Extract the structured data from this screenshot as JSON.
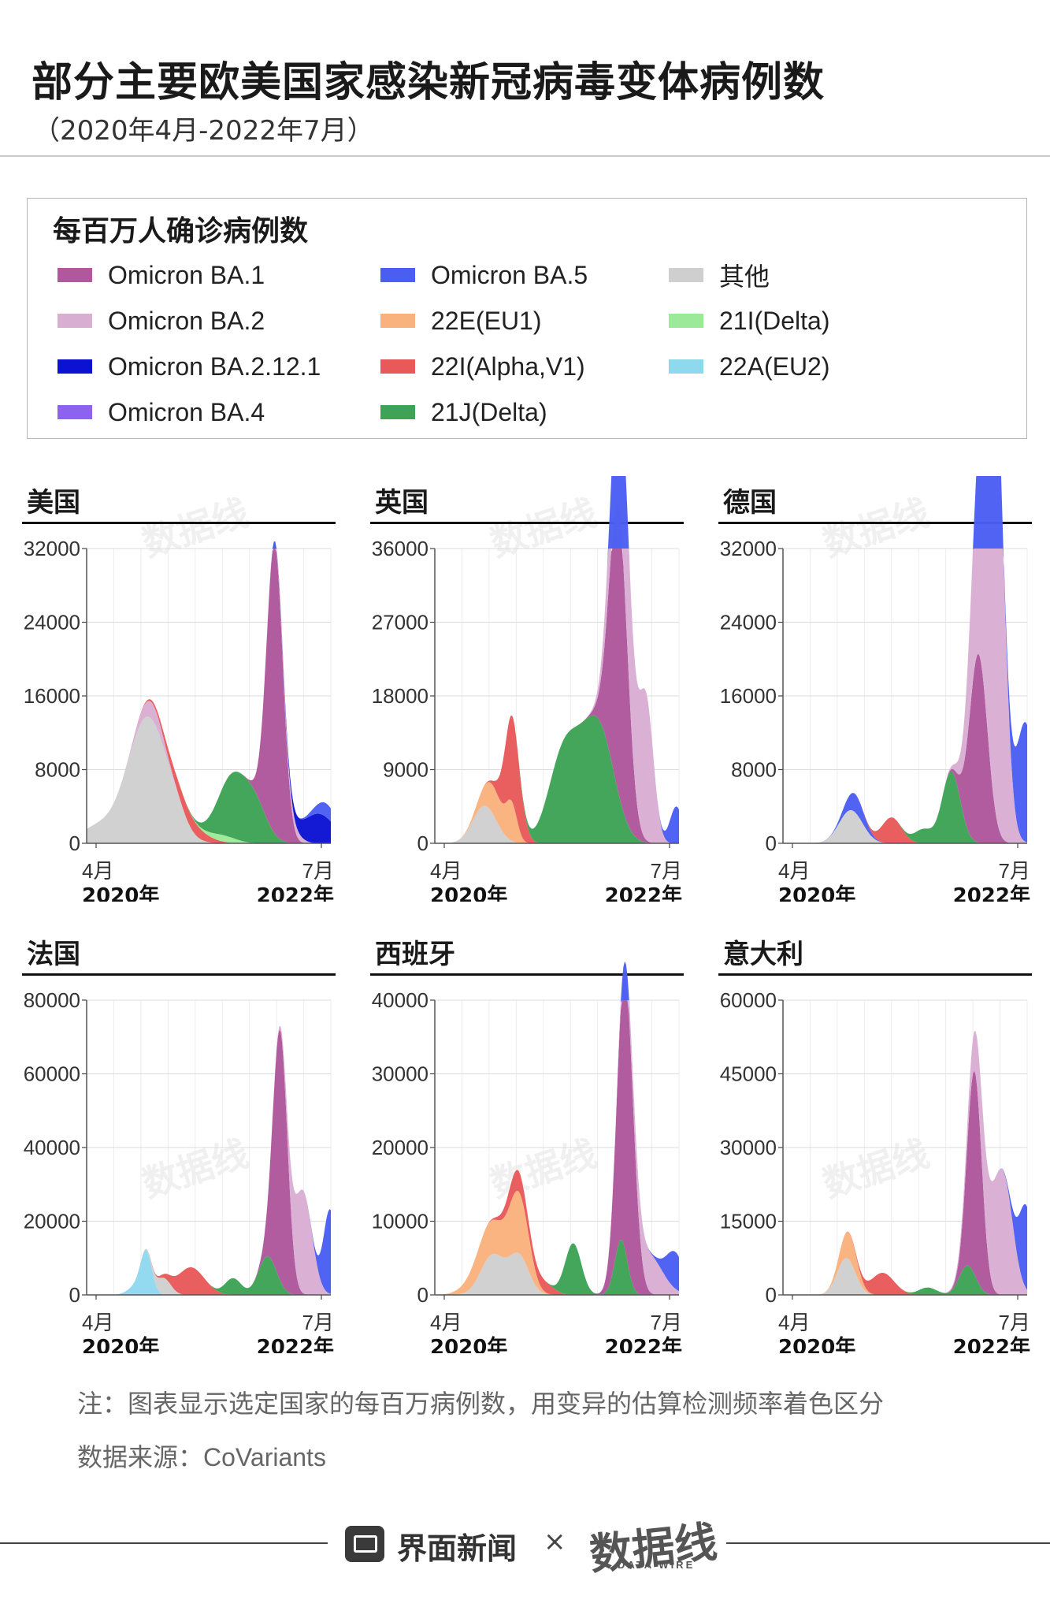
{
  "header": {
    "title": "部分主要欧美国家感染新冠病毒变体病例数",
    "subtitle": "（2020年4月-2022年7月）"
  },
  "legend": {
    "title": "每百万人确诊病例数",
    "items": [
      {
        "label": "Omicron BA.1",
        "color": "#b0579d"
      },
      {
        "label": "Omicron BA.2",
        "color": "#d9aed3"
      },
      {
        "label": "Omicron BA.2.12.1",
        "color": "#0c12d2"
      },
      {
        "label": "Omicron BA.4",
        "color": "#8c62ef"
      },
      {
        "label": "Omicron BA.5",
        "color": "#4a5ef2"
      },
      {
        "label": "22E(EU1)",
        "color": "#f9b27e"
      },
      {
        "label": "22I(Alpha,V1)",
        "color": "#e85a5a"
      },
      {
        "label": "21J(Delta)",
        "color": "#3ea356"
      },
      {
        "label": "其他",
        "color": "#cfcfcf"
      },
      {
        "label": "21I(Delta)",
        "color": "#9de99a"
      },
      {
        "label": "22A(EU2)",
        "color": "#8fd9ef"
      }
    ]
  },
  "watermark": "数据线",
  "chart_data": [
    {
      "type": "area",
      "country": "美国",
      "ylim": [
        0,
        32000
      ],
      "yticks": [
        0,
        8000,
        16000,
        24000,
        32000
      ],
      "xlim": [
        0,
        27
      ],
      "xticks": [
        "4月",
        "7月"
      ],
      "xyears": [
        "2020年",
        "2022年"
      ],
      "series": [
        {
          "name": "其他",
          "peaks": [
            [
              0.6,
              1.5,
              700
            ],
            [
              2.3,
              2.5,
              1200
            ],
            [
              6.8,
              2.2,
              13500
            ],
            [
              10.0,
              1.0,
              1000
            ]
          ]
        },
        {
          "name": "Omicron BA.2",
          "peaks": [
            [
              7.2,
              1.2,
              1800
            ]
          ]
        },
        {
          "name": "22I(Alpha,V1)",
          "peaks": [
            [
              11.0,
              2.0,
              1500
            ]
          ]
        },
        {
          "name": "21I(Delta)",
          "peaks": [
            [
              15.0,
              1.5,
              700
            ]
          ]
        },
        {
          "name": "21J(Delta)",
          "peaks": [
            [
              16.2,
              1.6,
              6600
            ],
            [
              18.7,
              1.3,
              3500
            ]
          ]
        },
        {
          "name": "Omicron BA.1",
          "peaks": [
            [
              20.8,
              0.9,
              31500
            ]
          ]
        },
        {
          "name": "Omicron BA.2",
          "peaks": [
            [
              22.6,
              1.0,
              1100
            ]
          ]
        },
        {
          "name": "Omicron BA.2.12.1",
          "peaks": [
            [
              25.6,
              1.8,
              3200
            ]
          ]
        },
        {
          "name": "Omicron BA.5",
          "peaks": [
            [
              26.6,
              1.2,
              1500
            ]
          ]
        }
      ]
    },
    {
      "type": "area",
      "country": "英国",
      "ylim": [
        0,
        36000
      ],
      "yticks": [
        0,
        9000,
        18000,
        27000,
        36000
      ],
      "xlim": [
        0,
        27
      ],
      "xticks": [
        "4月",
        "7月"
      ],
      "xyears": [
        "2020年",
        "2022年"
      ],
      "series": [
        {
          "name": "其他",
          "peaks": [
            [
              5.5,
              1.3,
              4600
            ]
          ]
        },
        {
          "name": "22E(EU1)",
          "peaks": [
            [
              6.5,
              1.2,
              3500
            ],
            [
              8.5,
              0.6,
              4000
            ]
          ]
        },
        {
          "name": "22I(Alpha,V1)",
          "peaks": [
            [
              8.6,
              0.9,
              10500
            ]
          ]
        },
        {
          "name": "21J(Delta)",
          "peaks": [
            [
              14.0,
              1.6,
              8000
            ],
            [
              16.5,
              2.0,
              8500
            ],
            [
              18.5,
              1.6,
              9000
            ]
          ]
        },
        {
          "name": "Omicron BA.1",
          "peaks": [
            [
              20.3,
              1.0,
              35000
            ]
          ]
        },
        {
          "name": "Omicron BA.2",
          "peaks": [
            [
              20.9,
              1.2,
              17000
            ],
            [
              23.4,
              0.8,
              16000
            ]
          ]
        },
        {
          "name": "Omicron BA.5",
          "peaks": [
            [
              26.7,
              0.7,
              4500
            ]
          ]
        }
      ]
    },
    {
      "type": "area",
      "country": "德国",
      "ylim": [
        0,
        32000
      ],
      "yticks": [
        0,
        8000,
        16000,
        24000,
        32000
      ],
      "xlim": [
        0,
        27
      ],
      "xticks": [
        "4月",
        "7月"
      ],
      "xyears": [
        "2020年",
        "2022年"
      ],
      "series": [
        {
          "name": "其他",
          "peaks": [
            [
              7.5,
              1.3,
              3600
            ]
          ]
        },
        {
          "name": "Omicron BA.5",
          "peaks": [
            [
              8.0,
              1.0,
              2000
            ]
          ]
        },
        {
          "name": "22I(Alpha,V1)",
          "peaks": [
            [
              12.0,
              1.1,
              2800
            ]
          ]
        },
        {
          "name": "21J(Delta)",
          "peaks": [
            [
              15.5,
              1.0,
              1500
            ],
            [
              18.6,
              1.0,
              7800
            ]
          ]
        },
        {
          "name": "Omicron BA.1",
          "peaks": [
            [
              21.6,
              1.0,
              20500
            ]
          ]
        },
        {
          "name": "Omicron BA.2",
          "peaks": [
            [
              22.5,
              1.3,
              27000
            ],
            [
              23.6,
              0.9,
              31500
            ]
          ]
        },
        {
          "name": "Omicron BA.5",
          "peaks": [
            [
              26.8,
              1.0,
              13000
            ]
          ]
        }
      ]
    },
    {
      "type": "area",
      "country": "法国",
      "ylim": [
        0,
        80000
      ],
      "yticks": [
        0,
        20000,
        40000,
        60000,
        80000
      ],
      "xlim": [
        0,
        27
      ],
      "xticks": [
        "4月",
        "7月"
      ],
      "xyears": [
        "2020年",
        "2022年"
      ],
      "series": [
        {
          "name": "22A(EU2)",
          "peaks": [
            [
              6.6,
              0.6,
              10000
            ],
            [
              5.8,
              1.0,
              3000
            ]
          ]
        },
        {
          "name": "其他",
          "peaks": [
            [
              8.5,
              0.8,
              4500
            ]
          ]
        },
        {
          "name": "22I(Alpha,V1)",
          "peaks": [
            [
              11.5,
              1.5,
              7500
            ]
          ]
        },
        {
          "name": "21J(Delta)",
          "peaks": [
            [
              16.2,
              0.9,
              4500
            ],
            [
              20.0,
              1.0,
              10500
            ]
          ]
        },
        {
          "name": "Omicron BA.1",
          "peaks": [
            [
              21.4,
              0.8,
              68000
            ]
          ]
        },
        {
          "name": "Omicron BA.2",
          "peaks": [
            [
              23.9,
              1.0,
              28000
            ]
          ]
        },
        {
          "name": "Omicron BA.5",
          "peaks": [
            [
              26.9,
              0.7,
              23000
            ]
          ]
        }
      ]
    },
    {
      "type": "area",
      "country": "西班牙",
      "ylim": [
        0,
        40000
      ],
      "yticks": [
        0,
        10000,
        20000,
        30000,
        40000
      ],
      "xlim": [
        0,
        27
      ],
      "xticks": [
        "4月",
        "7月"
      ],
      "xyears": [
        "2020年",
        "2022年"
      ],
      "series": [
        {
          "name": "其他",
          "peaks": [
            [
              6.4,
              1.3,
              5400
            ],
            [
              9.3,
              1.1,
              5200
            ]
          ]
        },
        {
          "name": "22E(EU1)",
          "peaks": [
            [
              6.0,
              1.8,
              4500
            ],
            [
              9.3,
              1.1,
              7500
            ]
          ]
        },
        {
          "name": "22I(Alpha,V1)",
          "peaks": [
            [
              9.0,
              1.1,
              2800
            ],
            [
              12.0,
              1.1,
              1500
            ]
          ]
        },
        {
          "name": "21J(Delta)",
          "peaks": [
            [
              15.3,
              0.9,
              7000
            ],
            [
              20.6,
              0.7,
              7500
            ]
          ]
        },
        {
          "name": "Omicron BA.1",
          "peaks": [
            [
              21.1,
              0.9,
              37500
            ]
          ]
        },
        {
          "name": "Omicron BA.2",
          "peaks": [
            [
              23.5,
              1.6,
              5500
            ]
          ]
        },
        {
          "name": "Omicron BA.5",
          "peaks": [
            [
              26.6,
              1.0,
              5000
            ]
          ]
        }
      ]
    },
    {
      "type": "area",
      "country": "意大利",
      "ylim": [
        0,
        60000
      ],
      "yticks": [
        0,
        15000,
        30000,
        45000,
        60000
      ],
      "xlim": [
        0,
        27
      ],
      "xticks": [
        "4月",
        "7月"
      ],
      "xyears": [
        "2020年",
        "2022年"
      ],
      "series": [
        {
          "name": "其他",
          "peaks": [
            [
              7.0,
              1.0,
              7500
            ]
          ]
        },
        {
          "name": "22E(EU1)",
          "peaks": [
            [
              7.3,
              0.9,
              5500
            ]
          ]
        },
        {
          "name": "22I(Alpha,V1)",
          "peaks": [
            [
              11.0,
              1.3,
              4500
            ]
          ]
        },
        {
          "name": "21J(Delta)",
          "peaks": [
            [
              16.0,
              1.0,
              1500
            ],
            [
              20.4,
              0.9,
              6000
            ]
          ]
        },
        {
          "name": "Omicron BA.1",
          "peaks": [
            [
              21.2,
              0.8,
              41500
            ]
          ]
        },
        {
          "name": "Omicron BA.2",
          "peaks": [
            [
              22.8,
              1.5,
              14500
            ],
            [
              24.5,
              1.0,
              17000
            ]
          ]
        },
        {
          "name": "Omicron BA.5",
          "peaks": [
            [
              26.9,
              0.8,
              17000
            ]
          ]
        }
      ]
    }
  ],
  "footer": {
    "note": "注：图表显示选定国家的每百万病例数，用变异的估算检测频率着色区分",
    "source_prefix": "数据来源：",
    "source_name": "CoVariants",
    "brand": "界面新闻",
    "times": "×",
    "datawire": "数据线",
    "datawire_sub": "DATA WIRE"
  }
}
